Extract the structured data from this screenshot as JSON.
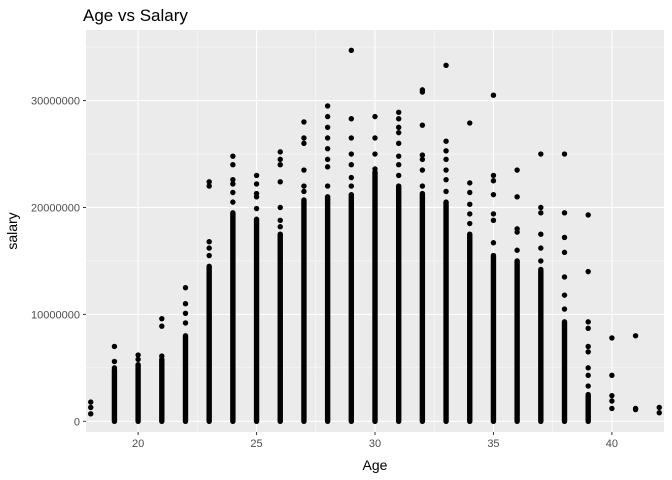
{
  "chart_data": {
    "type": "scatter",
    "title": "Age vs Salary",
    "xlabel": "Age",
    "ylabel": "salary",
    "xlim": [
      17.8,
      42.2
    ],
    "ylim": [
      -1000000,
      36600000
    ],
    "grid": true,
    "legend": "none",
    "colors": {
      "panel": "#ebebeb",
      "grid_major": "#ffffff",
      "point": "#000000",
      "tick_label": "#4d4d4d",
      "tick_mark": "#333333"
    },
    "x_ticks": [
      {
        "value": 20,
        "label": "20"
      },
      {
        "value": 25,
        "label": "25"
      },
      {
        "value": 30,
        "label": "30"
      },
      {
        "value": 35,
        "label": "35"
      },
      {
        "value": 40,
        "label": "40"
      }
    ],
    "y_ticks": [
      {
        "value": 0,
        "label": "0"
      },
      {
        "value": 10000000,
        "label": "10000000"
      },
      {
        "value": 20000000,
        "label": "20000000"
      },
      {
        "value": 30000000,
        "label": "30000000"
      }
    ],
    "point_bands": [
      {
        "age": 18,
        "dense_to": 0,
        "outliers": [
          700000,
          1300000,
          1800000
        ]
      },
      {
        "age": 19,
        "dense_to": 4800000,
        "outliers": [
          5000000,
          5600000,
          7000000
        ]
      },
      {
        "age": 20,
        "dense_to": 5300000,
        "outliers": [
          5800000,
          6200000
        ]
      },
      {
        "age": 21,
        "dense_to": 5800000,
        "outliers": [
          6100000,
          8900000,
          9600000
        ]
      },
      {
        "age": 22,
        "dense_to": 8000000,
        "outliers": [
          9200000,
          10100000,
          11000000,
          12500000
        ]
      },
      {
        "age": 23,
        "dense_to": 14500000,
        "outliers": [
          15500000,
          16200000,
          16800000,
          22000000,
          22400000
        ]
      },
      {
        "age": 24,
        "dense_to": 19500000,
        "outliers": [
          20500000,
          21400000,
          22200000,
          22600000,
          24000000,
          24800000
        ]
      },
      {
        "age": 25,
        "dense_to": 18900000,
        "outliers": [
          19900000,
          21000000,
          21300000,
          22200000,
          23000000
        ]
      },
      {
        "age": 26,
        "dense_to": 17500000,
        "outliers": [
          18200000,
          18800000,
          20000000,
          22400000,
          24000000,
          24500000,
          25200000
        ]
      },
      {
        "age": 27,
        "dense_to": 20700000,
        "outliers": [
          21500000,
          22000000,
          23500000,
          26000000,
          26500000,
          28000000
        ]
      },
      {
        "age": 28,
        "dense_to": 21000000,
        "outliers": [
          22000000,
          23800000,
          24500000,
          25500000,
          26500000,
          27500000,
          28500000,
          29500000
        ]
      },
      {
        "age": 29,
        "dense_to": 21200000,
        "outliers": [
          22000000,
          22800000,
          24000000,
          25000000,
          26500000,
          28300000,
          34700000
        ]
      },
      {
        "age": 30,
        "dense_to": 23300000,
        "outliers": [
          23600000,
          25000000,
          26500000,
          28500000
        ]
      },
      {
        "age": 31,
        "dense_to": 22000000,
        "outliers": [
          23000000,
          24000000,
          24800000,
          26000000,
          27000000,
          27500000,
          28300000,
          28900000
        ]
      },
      {
        "age": 32,
        "dense_to": 21300000,
        "outliers": [
          22000000,
          23500000,
          24500000,
          24900000,
          27700000,
          30800000,
          31000000
        ]
      },
      {
        "age": 33,
        "dense_to": 20500000,
        "outliers": [
          21500000,
          22600000,
          23500000,
          24500000,
          25300000,
          26200000,
          33300000
        ]
      },
      {
        "age": 34,
        "dense_to": 17500000,
        "outliers": [
          18500000,
          19400000,
          20300000,
          21400000,
          22300000,
          27900000
        ]
      },
      {
        "age": 35,
        "dense_to": 15500000,
        "outliers": [
          16700000,
          18800000,
          19400000,
          21200000,
          22500000,
          23000000,
          30500000
        ]
      },
      {
        "age": 36,
        "dense_to": 15000000,
        "outliers": [
          16000000,
          17700000,
          18000000,
          21000000,
          23500000
        ]
      },
      {
        "age": 37,
        "dense_to": 14200000,
        "outliers": [
          15000000,
          16200000,
          17500000,
          19500000,
          20000000,
          25000000
        ]
      },
      {
        "age": 38,
        "dense_to": 9300000,
        "outliers": [
          10500000,
          11800000,
          13500000,
          15800000,
          17200000,
          19500000,
          25000000
        ]
      },
      {
        "age": 39,
        "dense_to": 2500000,
        "outliers": [
          400000,
          3300000,
          4300000,
          5000000,
          6500000,
          7000000,
          8700000,
          9300000,
          14000000,
          19300000
        ]
      },
      {
        "age": 40,
        "dense_to": 0,
        "outliers": [
          1200000,
          1900000,
          2400000,
          4300000,
          7800000
        ]
      },
      {
        "age": 41,
        "dense_to": 0,
        "outliers": [
          1100000,
          1200000,
          8000000
        ]
      },
      {
        "age": 42,
        "dense_to": 0,
        "outliers": [
          800000,
          1300000
        ]
      }
    ]
  }
}
